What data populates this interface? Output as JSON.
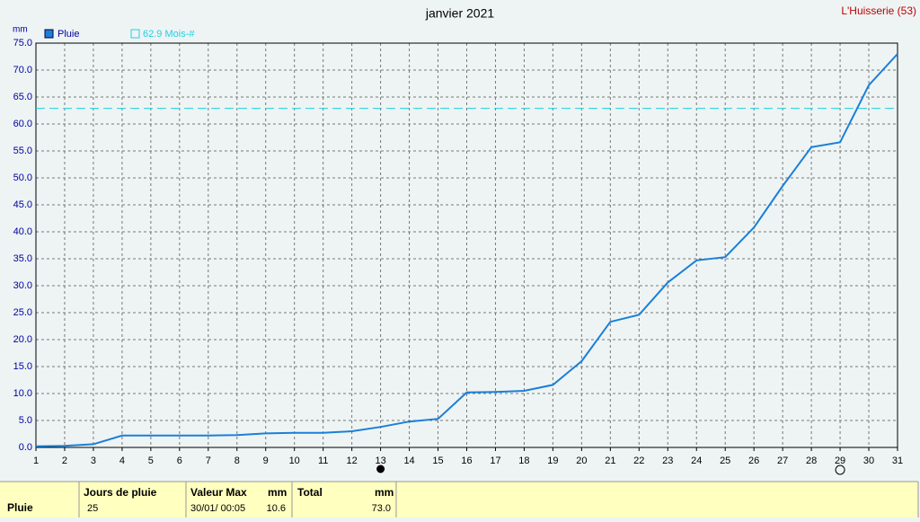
{
  "chart_data": {
    "type": "line",
    "title": "janvier 2021",
    "location": "L'Huisserie (53)",
    "y_unit": "mm",
    "x": [
      1,
      2,
      3,
      4,
      5,
      6,
      7,
      8,
      9,
      10,
      11,
      12,
      13,
      14,
      15,
      16,
      17,
      18,
      19,
      20,
      21,
      22,
      23,
      24,
      25,
      26,
      27,
      28,
      29,
      30,
      31
    ],
    "series": [
      {
        "name": "Pluie",
        "color": "#1a7fd8",
        "values": [
          0.2,
          0.3,
          0.6,
          2.2,
          2.2,
          2.2,
          2.2,
          2.3,
          2.6,
          2.7,
          2.7,
          3.0,
          3.8,
          4.8,
          5.3,
          10.2,
          10.3,
          10.5,
          11.6,
          16.0,
          23.3,
          24.6,
          30.6,
          34.7,
          35.3,
          40.8,
          48.5,
          55.7,
          56.6,
          67.2,
          73.0
        ]
      }
    ],
    "reference": {
      "value": 62.9,
      "label": "62.9 Mois-#",
      "color": "#20d0e0"
    },
    "moon_phases": [
      {
        "day": 13,
        "phase": "new"
      },
      {
        "day": 29,
        "phase": "full"
      }
    ],
    "xlim": [
      1,
      31
    ],
    "xticks": [
      1,
      2,
      3,
      4,
      5,
      6,
      7,
      8,
      9,
      10,
      11,
      12,
      13,
      14,
      15,
      16,
      17,
      18,
      19,
      20,
      21,
      22,
      23,
      24,
      25,
      26,
      27,
      28,
      29,
      30,
      31
    ],
    "ylim": [
      0,
      75
    ],
    "yticks": [
      {
        "value": 0,
        "label": "0.0"
      },
      {
        "value": 5,
        "label": "5.0"
      },
      {
        "value": 10,
        "label": "10.0"
      },
      {
        "value": 15,
        "label": "15.0"
      },
      {
        "value": 20,
        "label": "20.0"
      },
      {
        "value": 25,
        "label": "25.0"
      },
      {
        "value": 30,
        "label": "30.0"
      },
      {
        "value": 35,
        "label": "35.0"
      },
      {
        "value": 40,
        "label": "40.0"
      },
      {
        "value": 45,
        "label": "45.0"
      },
      {
        "value": 50,
        "label": "50.0"
      },
      {
        "value": 55,
        "label": "55.0"
      },
      {
        "value": 60,
        "label": "60.0"
      },
      {
        "value": 65,
        "label": "65.0"
      },
      {
        "value": 70,
        "label": "70.0"
      },
      {
        "value": 75,
        "label": "75.0"
      }
    ],
    "grid": true
  },
  "table": {
    "row_label": "Pluie",
    "headers": [
      "Jours de pluie",
      "Valeur Max",
      "mm",
      "Total",
      "mm"
    ],
    "cells": [
      "25",
      "30/01/ 00:05",
      "10.6",
      "73.0"
    ]
  }
}
